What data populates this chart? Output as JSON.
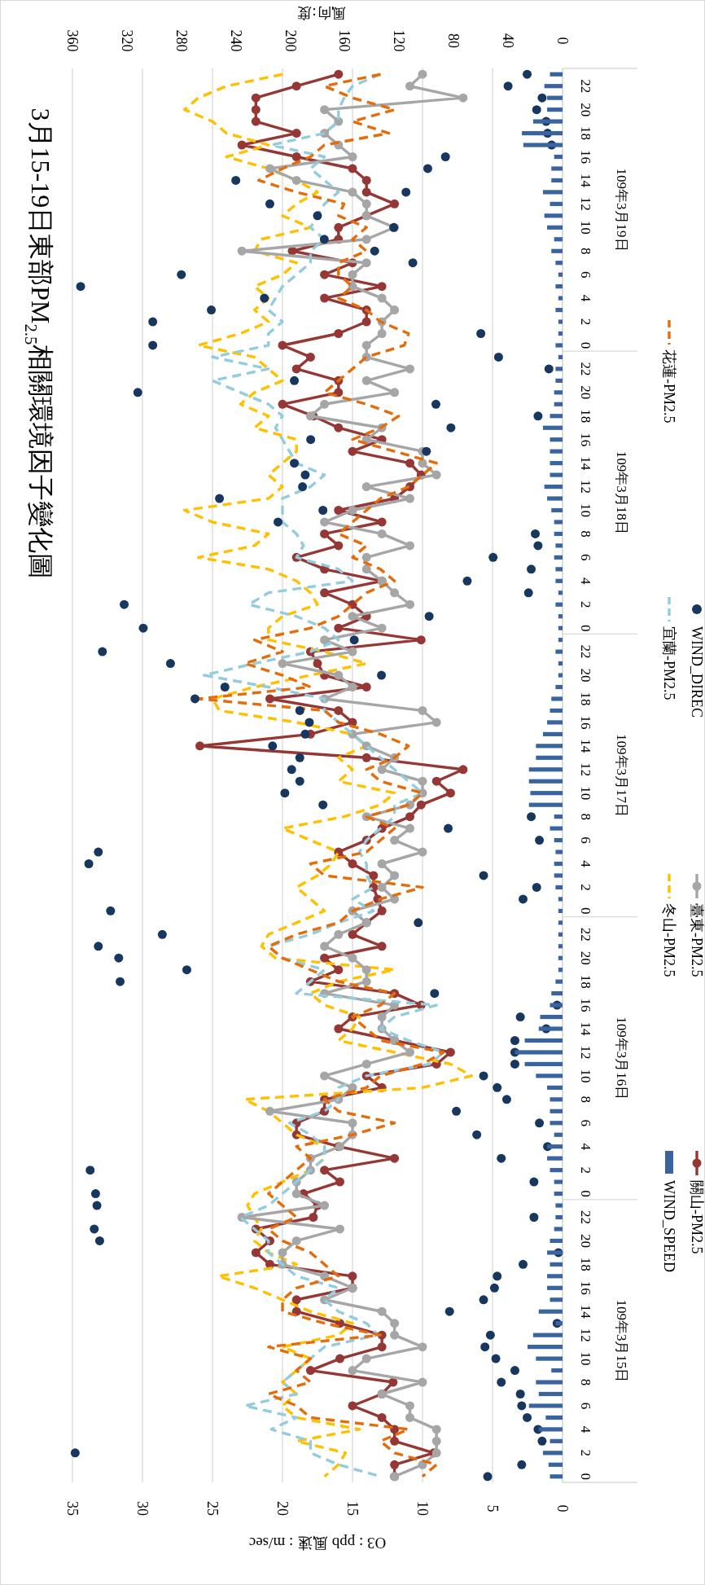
{
  "chart_data": {
    "type": "line",
    "orientation": "horizontal",
    "title": "3月15-19日東部PM$_{2.5}$相關環境因子變化圖",
    "xlabel": "O3 : ppb   風速 : m/sec",
    "x2label": "風向:度",
    "xlim": [
      35,
      0
    ],
    "xticks": [
      35,
      30,
      25,
      20,
      15,
      10,
      5,
      0
    ],
    "x2lim": [
      360,
      0
    ],
    "x2ticks": [
      360,
      320,
      280,
      240,
      200,
      160,
      120,
      80,
      40,
      0
    ],
    "grid": "x",
    "legend": "right",
    "annotations": [
      "109年3月19日",
      "109年3月18日",
      "109年3月17日",
      "109年3月16日",
      "109年3月15日"
    ],
    "categories": [
      null,
      "22",
      null,
      "20",
      null,
      "18",
      null,
      "16",
      null,
      "14",
      null,
      "12",
      null,
      "10",
      null,
      "8",
      null,
      "6",
      null,
      "4",
      null,
      "2",
      null,
      "0",
      null,
      "22",
      null,
      "20",
      null,
      "18",
      null,
      "16",
      null,
      "14",
      null,
      "12",
      null,
      "10",
      null,
      "8",
      null,
      "6",
      null,
      "4",
      null,
      "2",
      null,
      "0",
      null,
      "22",
      null,
      "20",
      null,
      "18",
      null,
      "16",
      null,
      "14",
      null,
      "12",
      null,
      "10",
      null,
      "8",
      null,
      "6",
      null,
      "4",
      null,
      "2",
      null,
      "0",
      null,
      "22",
      null,
      "20",
      null,
      "18",
      null,
      "16",
      null,
      "14",
      null,
      "12",
      null,
      "10",
      null,
      "8",
      null,
      "6",
      null,
      "4",
      null,
      "2",
      null,
      "0",
      null,
      "22",
      null,
      "20",
      null,
      "18",
      null,
      "16",
      null,
      "14",
      null,
      "12",
      null,
      "10",
      null,
      "8",
      null,
      "6",
      null,
      "4",
      null,
      "2",
      null,
      "0"
    ],
    "series": [
      {
        "name": "WIND_SPEED",
        "type": "bar",
        "color": "#3a64a0",
        "values": [
          0.9,
          1.3,
          1.1,
          1.1,
          2.1,
          2.9,
          2.8,
          0.6,
          0.8,
          0.8,
          1.4,
          0.9,
          1.3,
          1.1,
          0.6,
          0.8,
          0.5,
          0.3,
          0.5,
          0.3,
          0.5,
          0.3,
          0.3,
          0.5,
          0.3,
          0.5,
          0.5,
          0.6,
          0.6,
          0.9,
          1.4,
          0.9,
          0.9,
          0.9,
          0.9,
          1.3,
          1.1,
          0.8,
          0.6,
          0.6,
          0.5,
          0.6,
          0.5,
          0.5,
          0.3,
          0.5,
          0.3,
          0.3,
          0.3,
          0.5,
          0.3,
          0.3,
          0.5,
          0.8,
          0.9,
          1.1,
          1.4,
          1.9,
          1.9,
          2.4,
          2.4,
          2.3,
          2.4,
          0.6,
          0.9,
          0.6,
          0.5,
          0.6,
          0.6,
          0.5,
          0.3,
          0.3,
          0.3,
          0.3,
          0.3,
          0.3,
          0.3,
          0.5,
          0.8,
          0.9,
          1.6,
          1.7,
          2.7,
          3.4,
          2.7,
          1.9,
          1.1,
          0.9,
          0.9,
          0.9,
          0.6,
          1.1,
          1.1,
          0.9,
          0.6,
          0.6,
          0.5,
          0.5,
          0.6,
          0.9,
          1.1,
          0.9,
          1.1,
          1.1,
          0.9,
          1.7,
          0.5,
          2.1,
          2.5,
          1.9,
          0.8,
          1.9,
          1.7,
          2.4,
          1.2,
          1.7,
          0.9,
          1.4,
          1.0,
          0.9
        ]
      },
      {
        "name": "關山-PM2.5",
        "marker": "circle",
        "line_style": "solid",
        "color": "#953735",
        "values": [
          16.0,
          19.0,
          21.9,
          21.9,
          21.9,
          19.0,
          22.9,
          19.0,
          15.0,
          14.0,
          14.0,
          12.0,
          14.0,
          16.0,
          16.0,
          19.3,
          15.0,
          17.0,
          12.9,
          17.0,
          14.0,
          14.0,
          16.0,
          20.0,
          18.0,
          19.0,
          16.0,
          16.0,
          20.0,
          17.8,
          16.0,
          12.9,
          15.0,
          10.9,
          10.1,
          10.9,
          12.0,
          16.0,
          12.9,
          17.0,
          16.0,
          19.0,
          17.0,
          12.9,
          17.0,
          15.0,
          14.0,
          16.0,
          10.1,
          18.0,
          17.5,
          17.0,
          14.0,
          20.9,
          16.0,
          15.0,
          18.0,
          25.9,
          14.0,
          7.1,
          9.0,
          8.0,
          10.1,
          10.9,
          12.9,
          14.0,
          16.0,
          15.0,
          13.5,
          13.5,
          13.2,
          12.9,
          14.0,
          15.0,
          12.9,
          17.0,
          16.0,
          18.0,
          12.0,
          10.1,
          15.0,
          16.0,
          12.0,
          8.0,
          9.0,
          14.0,
          12.9,
          17.0,
          17.0,
          19.0,
          19.0,
          16.0,
          12.0,
          17.0,
          15.9,
          18.5,
          17.5,
          17.8,
          21.9,
          20.9,
          21.9,
          20.9,
          15.0,
          15.0,
          19.0,
          19.0,
          15.9,
          12.9,
          12.9,
          15.9,
          18.0,
          12.1,
          12.9,
          15.0,
          12.9,
          12.0,
          12.0,
          9.2,
          12.0,
          12.0
        ]
      },
      {
        "name": "冬山-PM2.5",
        "marker": "none",
        "line_style": "dashed",
        "color": "#ffc000",
        "values": [
          20,
          24,
          26,
          27,
          25,
          24,
          21,
          24,
          21,
          19,
          17.5,
          19,
          20,
          18,
          21.5,
          22,
          19,
          20,
          22,
          21,
          22,
          21,
          23,
          26,
          22,
          21,
          20,
          22,
          23,
          21,
          22,
          19,
          19,
          20,
          21,
          20,
          21,
          27,
          25,
          21,
          22,
          26,
          21,
          19,
          18,
          17.5,
          20,
          21,
          21,
          17,
          14,
          18,
          22,
          25,
          24.5,
          19,
          15,
          14,
          16,
          15,
          16,
          12,
          13,
          15.6,
          20,
          18,
          16,
          16.5,
          17.5,
          19,
          18,
          17,
          19,
          21,
          21.5,
          20.5,
          12,
          16,
          18,
          17,
          14.5,
          15,
          16,
          12,
          8,
          6.5,
          10,
          22.7,
          21,
          20,
          19,
          17,
          17,
          18,
          20,
          22,
          22.5,
          22,
          21.5,
          22,
          21,
          19,
          24.6,
          22,
          20,
          18,
          15,
          16,
          20,
          18,
          19,
          20,
          19,
          20,
          19,
          14.5,
          19,
          15.5,
          16,
          17
        ]
      },
      {
        "name": "臺東-PM2.5",
        "marker": "circle",
        "line_style": "solid",
        "color": "#a6a6a6",
        "values": [
          10.0,
          10.9,
          7.1,
          17.0,
          16.0,
          17.0,
          16.0,
          15.0,
          20.9,
          19.0,
          15.0,
          14.0,
          14.0,
          12.0,
          14.0,
          22.9,
          14.0,
          15.0,
          15.0,
          12.9,
          12.0,
          12.9,
          12.9,
          14.0,
          14.0,
          10.9,
          14.0,
          12.0,
          17.0,
          18.0,
          12.9,
          14.0,
          10.0,
          10.0,
          9.0,
          14.0,
          10.9,
          15.0,
          17.0,
          12.9,
          10.9,
          14.0,
          14.0,
          12.9,
          12.0,
          10.9,
          15.0,
          12.9,
          17.0,
          15.0,
          20.0,
          16.0,
          15.0,
          17.0,
          10.0,
          9.0,
          15.0,
          14.0,
          12.0,
          12.9,
          10.0,
          10.0,
          10.9,
          14.0,
          10.9,
          12.0,
          10.0,
          12.9,
          12.0,
          12.9,
          12.0,
          15.0,
          14.0,
          16.0,
          17.0,
          15.0,
          14.0,
          14.0,
          17.0,
          12.0,
          12.9,
          12.9,
          12.0,
          10.9,
          14.0,
          17.0,
          15.0,
          16.0,
          20.9,
          15.0,
          15.0,
          15.9,
          18.0,
          18.0,
          19.0,
          19.0,
          17.0,
          22.9,
          15.9,
          19.0,
          20.0,
          20.0,
          17.0,
          15.0,
          17.0,
          12.9,
          12.0,
          12.0,
          10.0,
          14.0,
          15.0,
          10.0,
          12.9,
          10.9,
          10.9,
          9.0,
          9.0,
          9.0,
          10.0,
          12.0
        ]
      },
      {
        "name": "宜蘭-PM2.5",
        "marker": "none",
        "line_style": "dashed",
        "color": "#93cddd",
        "values": [
          13,
          15,
          15.6,
          16,
          16,
          17,
          20.8,
          17,
          18,
          17,
          16,
          17,
          17.5,
          18,
          17,
          18,
          18,
          19,
          20,
          20.5,
          21,
          20,
          21,
          21,
          25,
          21,
          25,
          23,
          21,
          20,
          20.5,
          20,
          19.5,
          19,
          17,
          18,
          20,
          20,
          20,
          19,
          18.5,
          19,
          16,
          15,
          21,
          22.4,
          19,
          17,
          16,
          18,
          22,
          25.6,
          21,
          17,
          17,
          16,
          15,
          14,
          13,
          12,
          11,
          10,
          12,
          12,
          13,
          14,
          14.5,
          14,
          14,
          13.5,
          15,
          13.5,
          16,
          18,
          21,
          20,
          17,
          18,
          19,
          9,
          12,
          13,
          11,
          8.5,
          9.5,
          14,
          16,
          16,
          17,
          19.5,
          18,
          17,
          17,
          18,
          19,
          20,
          21,
          23,
          22,
          21,
          21,
          20,
          19,
          16,
          17,
          16,
          14,
          13.2,
          17,
          18,
          19,
          20,
          19,
          22.7,
          19,
          20.8,
          18,
          18,
          16,
          13
        ]
      },
      {
        "name": "WIND_DIREC",
        "type": "scatter",
        "axis": "x2",
        "marker": "circle",
        "color": "#17375e",
        "values": [
          26,
          40,
          15,
          19,
          12,
          11,
          8,
          86,
          99,
          240,
          115,
          215,
          180,
          124,
          175,
          138,
          110,
          280,
          354,
          219,
          258,
          301,
          60,
          301,
          47,
          10,
          197,
          312,
          93,
          18,
          82,
          185,
          100,
          197,
          189,
          191,
          252,
          176,
          209,
          20,
          18,
          51,
          23,
          70,
          25,
          322,
          98,
          308,
          153,
          338,
          288,
          133,
          248,
          270,
          193,
          186,
          189,
          213,
          193,
          199,
          193,
          204,
          176,
          23,
          84,
          17,
          341,
          348,
          58,
          19,
          29,
          332,
          106,
          294,
          341,
          326,
          276,
          325,
          94,
          4,
          31,
          12,
          35,
          35,
          35,
          58,
          48,
          41,
          78,
          17,
          63,
          11,
          45,
          347,
          21,
          343,
          342,
          21,
          344,
          340,
          3,
          29,
          48,
          50,
          58,
          83,
          4,
          53,
          57,
          49,
          35,
          45,
          31,
          30,
          26,
          18,
          15,
          358,
          30,
          55
        ]
      },
      {
        "name": "花蓮-PM2.5",
        "marker": "none",
        "line_style": "dashed",
        "color": "#e46c0a",
        "values": [
          13,
          17,
          15,
          12,
          15,
          12.4,
          17,
          18,
          20,
          21.7,
          19,
          15.6,
          16,
          14,
          15,
          14,
          16,
          16,
          15,
          16,
          14,
          13,
          11,
          11.3,
          14,
          15,
          16,
          17,
          14,
          11.7,
          13,
          15,
          12,
          9,
          10,
          11,
          13,
          14,
          15,
          16,
          14,
          15,
          13,
          12,
          14,
          15,
          16,
          18,
          22,
          20,
          22.7,
          20,
          18,
          26,
          17,
          16,
          13,
          11,
          12,
          14,
          13,
          10,
          11,
          14,
          12,
          13,
          14,
          18,
          17,
          10,
          13,
          15,
          16,
          19,
          21,
          20,
          18,
          16,
          12,
          13,
          15,
          14,
          13,
          8.5,
          10,
          13,
          14,
          17,
          16,
          12,
          15,
          19,
          18,
          19,
          20,
          21,
          20,
          19,
          21,
          20,
          18,
          17,
          16,
          19,
          20,
          20,
          17,
          13,
          21,
          18,
          19,
          18,
          21,
          19,
          18,
          11,
          13,
          12,
          9,
          10
        ]
      }
    ]
  }
}
